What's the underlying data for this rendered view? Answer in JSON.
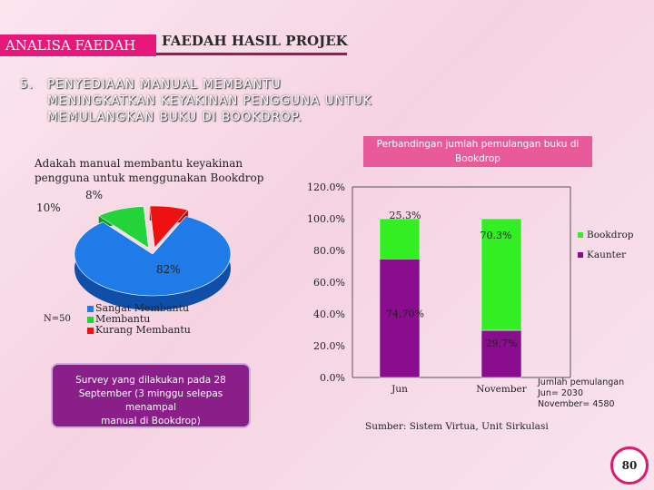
{
  "header": {
    "tab_label": "ANALISA FAEDAH",
    "title": "FAEDAH HASIL PROJEK"
  },
  "section": {
    "number": "5.",
    "text": "PENYEDIAAN MANUAL MEMBANTU\nMENINGKATKAN KEYAKINAN PENGGUNA UNTUK\nMEMULANGKAN BUKU DI BOOKDROP."
  },
  "pie_panel": {
    "n_label": "N=50",
    "survey_note": "Survey yang dilakukan pada  28\nSeptember (3 minggu selepas menampal\nmanual di Bookdrop)"
  },
  "bar_panel": {
    "side_note": "Jumlah pemulangan\nJun= 2030\nNovember= 4580",
    "source": "Sumber: Sistem Virtua, Unit Sirkulasi"
  },
  "page_number": "80",
  "colors": {
    "accent": "#e8187a",
    "pie_blue": "#1e7be8",
    "pie_green": "#22d33a",
    "pie_red": "#ee1111",
    "bar_green": "#33ee22",
    "bar_purple": "#8a0d8e"
  },
  "chart_data": [
    {
      "type": "pie",
      "title": "Adakah manual membantu keyakinan pengguna untuk menggunakan Bookdrop",
      "categories": [
        "Sangat Membantu",
        "Membantu",
        "Kurang Membantu"
      ],
      "values": [
        82,
        10,
        8
      ],
      "value_labels": [
        "82%",
        "10%",
        "8%"
      ],
      "legend_placement": "bottom-left"
    },
    {
      "type": "bar",
      "stacked": true,
      "title": "Perbandingan jumlah pemulangan buku di Bookdrop",
      "categories": [
        "Jun",
        "November"
      ],
      "series": [
        {
          "name": "Kaunter",
          "values": [
            74.7,
            29.7
          ],
          "labels": [
            "74.70%",
            "29.7%"
          ]
        },
        {
          "name": "Bookdrop",
          "values": [
            25.3,
            70.3
          ],
          "labels": [
            "25.3%",
            "70.3%"
          ]
        }
      ],
      "ylim": [
        0,
        120
      ],
      "yticks": [
        "0.0%",
        "20.0%",
        "40.0%",
        "60.0%",
        "80.0%",
        "100.0%",
        "120.0%"
      ],
      "grid": false,
      "legend_placement": "right"
    }
  ]
}
